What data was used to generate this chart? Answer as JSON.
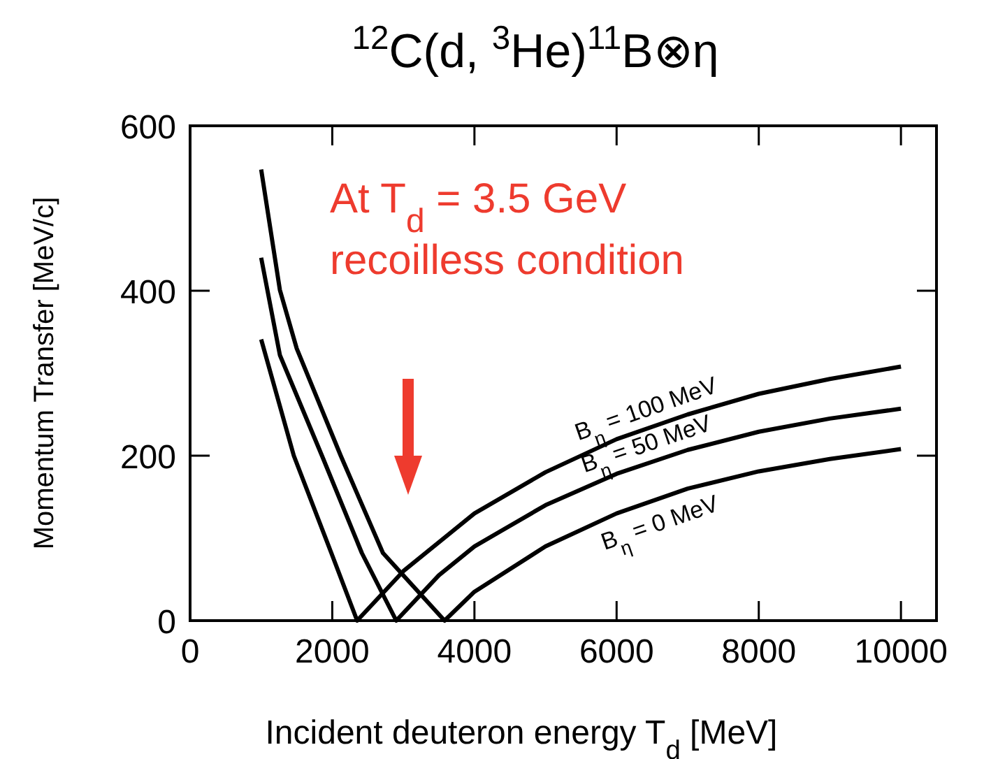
{
  "chart_data": {
    "type": "line",
    "title": "$^{12}$C(d, $^{3}$He)$^{11}$B⊗η",
    "xlabel": "Incident deuteron energy T$_{d}$ [MeV]",
    "ylabel": "Momentum Transfer [MeV/c]",
    "annotations": [
      "At T$_{d}$ = 3.5 GeV",
      "recoilless condition"
    ],
    "xlim": [
      0,
      10500
    ],
    "xticks": [
      0,
      2000,
      4000,
      6000,
      8000,
      10000
    ],
    "ylim": [
      0,
      600
    ],
    "yticks": [
      0,
      200,
      400,
      600
    ],
    "grid": false,
    "marker": "none",
    "line_style": "solid",
    "series": [
      {
        "name": "B$_{η}$ = 100 MeV",
        "color": "#000000",
        "x": [
          1000,
          1459,
          1987,
          2350,
          3000,
          4000,
          5000,
          6000,
          7000,
          8000,
          9000,
          10000
        ],
        "values": [
          341,
          200,
          82,
          0,
          60,
          130,
          180,
          220,
          250,
          275,
          293,
          308
        ]
      },
      {
        "name": "B$_{η}$ = 50 MeV",
        "color": "#000000",
        "x": [
          1000,
          1263,
          1855,
          2416,
          2900,
          3500,
          4000,
          5000,
          6000,
          7000,
          8000,
          9000,
          10000
        ],
        "values": [
          440,
          322,
          200,
          82,
          0,
          55,
          90,
          140,
          178,
          207,
          229,
          245,
          257
        ]
      },
      {
        "name": "B$_{η}$ = 0 MeV",
        "color": "#000000",
        "x": [
          1000,
          1263,
          1500,
          2119,
          2713,
          3580,
          4000,
          5000,
          6000,
          7000,
          8000,
          9000,
          10000
        ],
        "values": [
          547,
          401,
          330,
          200,
          82,
          0,
          35,
          90,
          130,
          160,
          181,
          196,
          208
        ]
      }
    ]
  }
}
